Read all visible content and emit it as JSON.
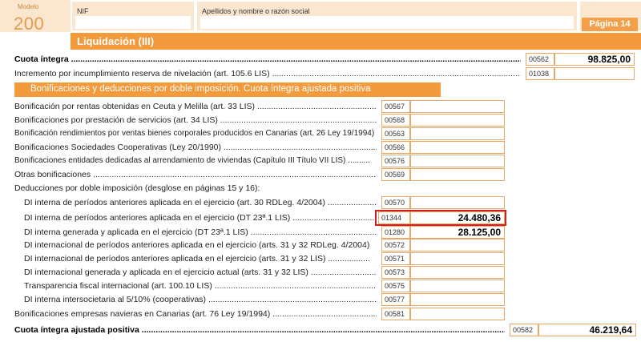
{
  "header": {
    "modelo_label": "Modelo",
    "modelo_number": "200",
    "nif_label": "NIF",
    "nif_value": "",
    "name_label": "Apellidos y nombre o razón social",
    "name_value": "",
    "page_label": "Página 14"
  },
  "section_title": "Liquidación (III)",
  "cuota_integra": {
    "label": "Cuota íntegra",
    "code": "00562",
    "value": "98.825,00"
  },
  "incremento": {
    "label": "Incremento por incumplimiento reserva de nivelación (art. 105.6 LIS)",
    "code": "01038",
    "value": ""
  },
  "sub_title": "Bonificaciones y deducciones por doble imposición. Cuota íntegra ajustada positiva",
  "bonificaciones": [
    {
      "label": "Bonificación por rentas obtenidas en Ceuta y Melilla (art. 33 LIS)",
      "code": "00567",
      "value": ""
    },
    {
      "label": "Bonificaciones por prestación de servicios (art. 34 LIS)",
      "code": "00568",
      "value": ""
    },
    {
      "label": "Bonificación rendimientos por ventas bienes corporales producidos en Canarias (art. 26 Ley 19/1994)",
      "code": "00563",
      "value": ""
    },
    {
      "label": "Bonificaciones Sociedades Cooperativas (Ley 20/1990)",
      "code": "00566",
      "value": ""
    },
    {
      "label": "Bonificaciones entidades dedicadas al arrendamiento de viviendas (Capítulo III Título VII LIS)",
      "code": "00576",
      "value": ""
    },
    {
      "label": "Otras bonificaciones",
      "code": "00569",
      "value": ""
    }
  ],
  "deducciones_title": "Deducciones por doble imposición (desglose en páginas 15 y 16):",
  "deducciones": [
    {
      "label": "DI interna de períodos anteriores aplicada en el ejercicio (art. 30 RDLeg. 4/2004)",
      "code": "00570",
      "value": ""
    },
    {
      "label": "DI interna de períodos anteriores aplicada en el ejercicio (DT 23ª.1 LIS)",
      "code": "01344",
      "value": "24.480,36"
    },
    {
      "label": "DI interna generada y aplicada en el ejercicio (DT 23ª.1 LIS)",
      "code": "01280",
      "value": "28.125,00"
    },
    {
      "label": "DI internacional de períodos anteriores aplicada en el ejercicio (arts. 31 y 32 RDLeg. 4/2004)",
      "code": "00572",
      "value": ""
    },
    {
      "label": "DI internacional de períodos anteriores aplicada en el ejercicio (arts. 31 y 32 LIS)",
      "code": "00571",
      "value": ""
    },
    {
      "label": "DI internacional generada y aplicada en el ejercicio actual (arts. 31 y 32 LIS)",
      "code": "00573",
      "value": ""
    },
    {
      "label": "Transparencia fiscal internacional (art. 100.10 LIS)",
      "code": "00575",
      "value": ""
    },
    {
      "label": "DI interna intersocietaria al 5/10% (cooperativas)",
      "code": "00577",
      "value": ""
    }
  ],
  "navieras": {
    "label": "Bonificaciones empresas navieras en Canarias (art. 76 Ley 19/1994)",
    "code": "00581",
    "value": ""
  },
  "cuota_ajustada": {
    "label": "Cuota íntegra ajustada positiva",
    "code": "00582",
    "value": "46.219,64"
  },
  "colors": {
    "orange": "#f29a3c",
    "light_orange": "#fbe7cf",
    "highlight": "#d31e25"
  }
}
